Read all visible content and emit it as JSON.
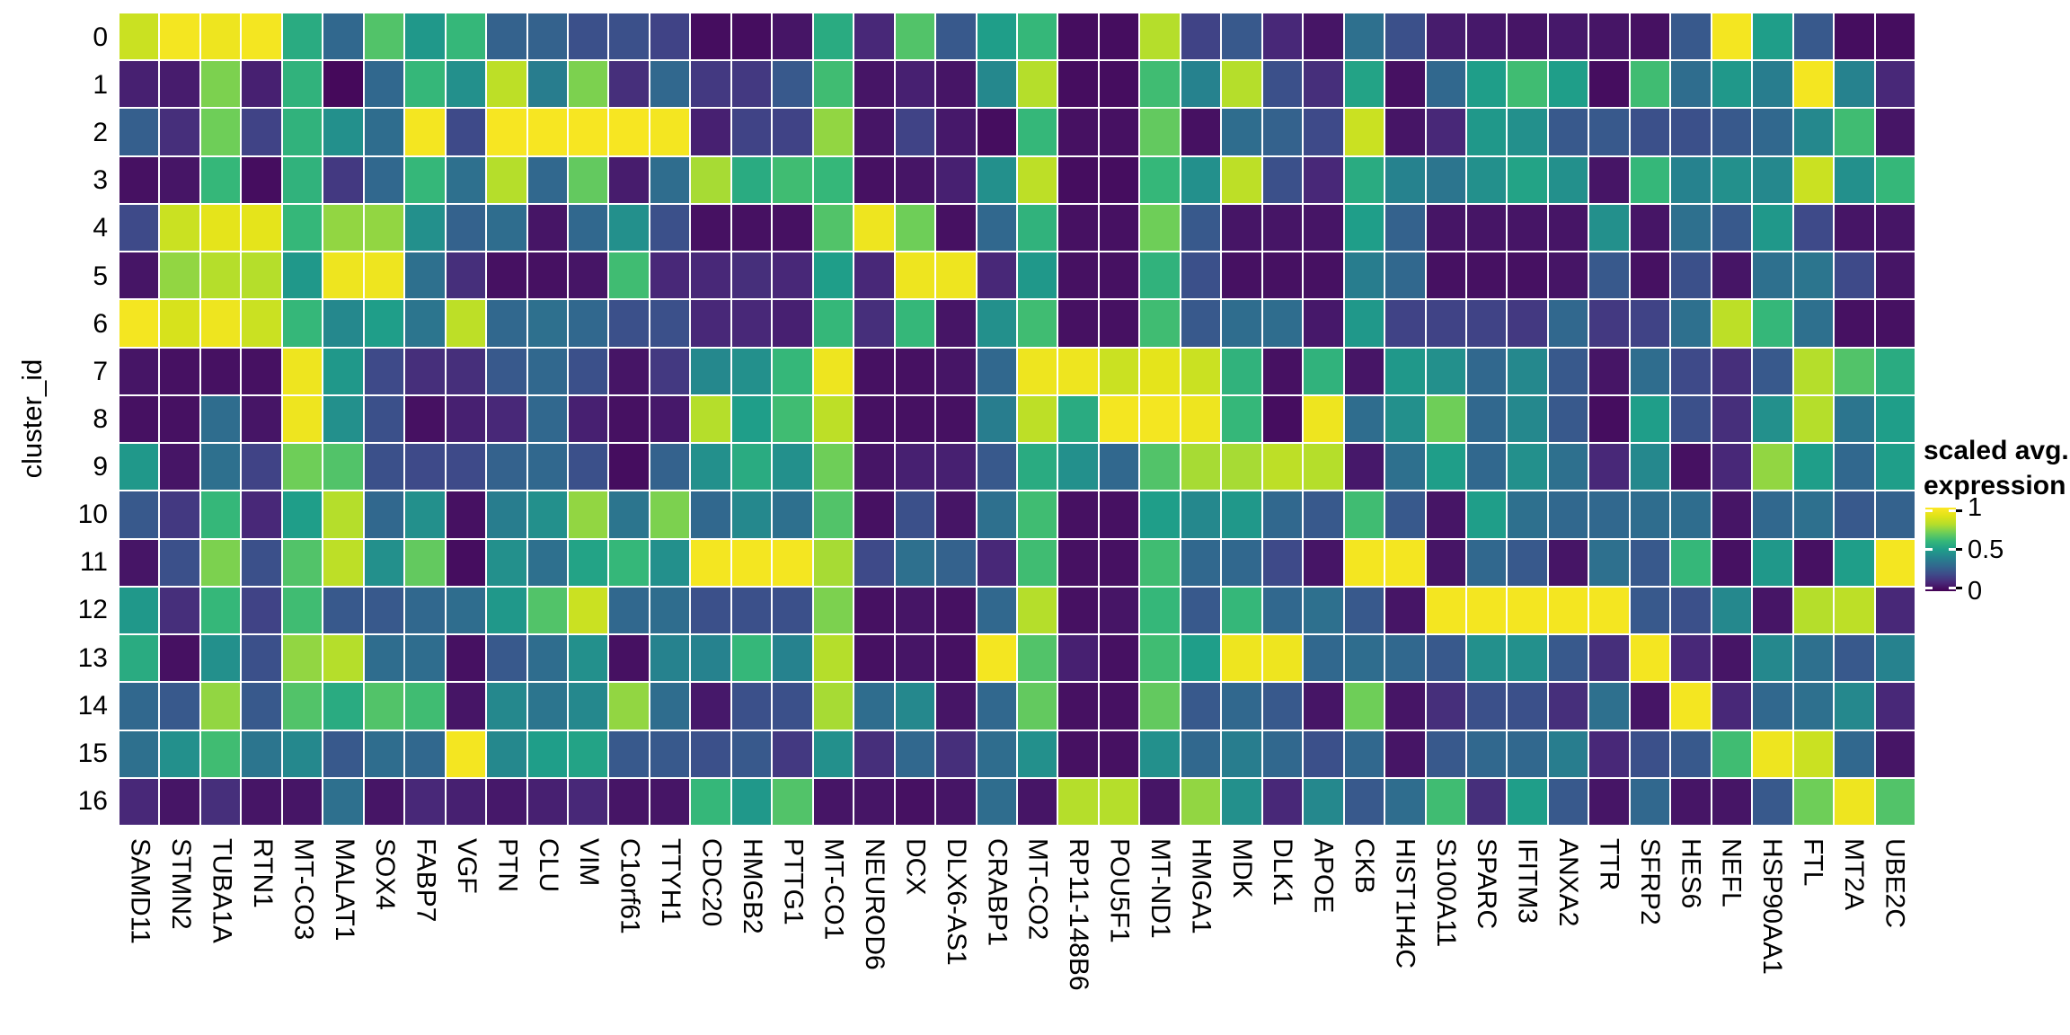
{
  "chart_data": {
    "type": "heatmap",
    "title": "",
    "xlabel": "",
    "ylabel": "cluster_id",
    "colormap": "viridis",
    "value_range": [
      0,
      1
    ],
    "grid": false,
    "legend_position": "right",
    "legend": {
      "title_line1": "scaled avg.",
      "title_line2": "expression",
      "ticks": [
        {
          "label": "1",
          "value": 1
        },
        {
          "label": "0.5",
          "value": 0.5
        },
        {
          "label": "0",
          "value": 0
        }
      ]
    },
    "x_categories": [
      "SAMD11",
      "STMN2",
      "TUBA1A",
      "RTN1",
      "MT-CO3",
      "MALAT1",
      "SOX4",
      "FABP7",
      "VGF",
      "PTN",
      "CLU",
      "VIM",
      "C1orf61",
      "TTYH1",
      "CDC20",
      "HMGB2",
      "PTTG1",
      "MT-CO1",
      "NEUROD6",
      "DCX",
      "DLX6-AS1",
      "CRABP1",
      "MT-CO2",
      "RP11-148B6",
      "POU5F1",
      "MT-ND1",
      "HMGA1",
      "MDK",
      "DLK1",
      "APOE",
      "CKB",
      "HIST1H4C",
      "S100A11",
      "SPARC",
      "IFITM3",
      "ANXA2",
      "TTR",
      "SFRP2",
      "HES6",
      "NEFL",
      "HSP90AA1",
      "FTL",
      "MT2A",
      "UBE2C"
    ],
    "y_categories": [
      "0",
      "1",
      "2",
      "3",
      "4",
      "5",
      "6",
      "7",
      "8",
      "9",
      "10",
      "11",
      "12",
      "13",
      "14",
      "15",
      "16"
    ],
    "values": [
      [
        0.85,
        0.97,
        0.95,
        0.97,
        0.55,
        0.3,
        0.65,
        0.48,
        0.6,
        0.28,
        0.28,
        0.22,
        0.22,
        0.18,
        0.03,
        0.03,
        0.05,
        0.55,
        0.1,
        0.65,
        0.25,
        0.5,
        0.6,
        0.03,
        0.03,
        0.8,
        0.18,
        0.25,
        0.1,
        0.05,
        0.33,
        0.22,
        0.07,
        0.06,
        0.05,
        0.06,
        0.05,
        0.04,
        0.25,
        0.97,
        0.5,
        0.25,
        0.03,
        0.03
      ],
      [
        0.08,
        0.07,
        0.72,
        0.08,
        0.58,
        0.02,
        0.3,
        0.6,
        0.45,
        0.82,
        0.38,
        0.72,
        0.12,
        0.3,
        0.15,
        0.15,
        0.25,
        0.62,
        0.05,
        0.08,
        0.05,
        0.42,
        0.8,
        0.03,
        0.03,
        0.62,
        0.4,
        0.8,
        0.22,
        0.12,
        0.52,
        0.04,
        0.3,
        0.5,
        0.62,
        0.5,
        0.03,
        0.62,
        0.32,
        0.48,
        0.38,
        0.97,
        0.4,
        0.1
      ],
      [
        0.27,
        0.12,
        0.7,
        0.18,
        0.58,
        0.45,
        0.32,
        0.97,
        0.2,
        0.98,
        0.98,
        0.98,
        0.98,
        0.97,
        0.08,
        0.18,
        0.18,
        0.75,
        0.05,
        0.18,
        0.06,
        0.03,
        0.6,
        0.04,
        0.04,
        0.68,
        0.04,
        0.32,
        0.28,
        0.2,
        0.85,
        0.05,
        0.1,
        0.48,
        0.45,
        0.25,
        0.25,
        0.22,
        0.22,
        0.25,
        0.3,
        0.42,
        0.62,
        0.05
      ],
      [
        0.04,
        0.05,
        0.6,
        0.03,
        0.58,
        0.15,
        0.3,
        0.6,
        0.33,
        0.8,
        0.3,
        0.68,
        0.07,
        0.32,
        0.78,
        0.55,
        0.62,
        0.6,
        0.04,
        0.05,
        0.08,
        0.45,
        0.82,
        0.03,
        0.03,
        0.6,
        0.45,
        0.82,
        0.22,
        0.1,
        0.55,
        0.4,
        0.35,
        0.45,
        0.52,
        0.45,
        0.05,
        0.6,
        0.4,
        0.45,
        0.42,
        0.85,
        0.45,
        0.6
      ],
      [
        0.2,
        0.85,
        0.92,
        0.92,
        0.6,
        0.75,
        0.75,
        0.45,
        0.28,
        0.32,
        0.05,
        0.3,
        0.45,
        0.22,
        0.04,
        0.04,
        0.04,
        0.65,
        0.95,
        0.7,
        0.04,
        0.3,
        0.58,
        0.04,
        0.04,
        0.7,
        0.25,
        0.05,
        0.05,
        0.05,
        0.5,
        0.28,
        0.05,
        0.05,
        0.05,
        0.05,
        0.45,
        0.05,
        0.33,
        0.25,
        0.48,
        0.2,
        0.05,
        0.05
      ],
      [
        0.05,
        0.75,
        0.8,
        0.8,
        0.48,
        0.95,
        0.95,
        0.33,
        0.12,
        0.04,
        0.04,
        0.05,
        0.62,
        0.1,
        0.1,
        0.12,
        0.1,
        0.5,
        0.1,
        0.95,
        0.95,
        0.1,
        0.48,
        0.04,
        0.04,
        0.58,
        0.22,
        0.04,
        0.04,
        0.04,
        0.38,
        0.3,
        0.04,
        0.04,
        0.04,
        0.05,
        0.25,
        0.04,
        0.22,
        0.05,
        0.33,
        0.35,
        0.2,
        0.05
      ],
      [
        0.97,
        0.88,
        0.95,
        0.85,
        0.6,
        0.42,
        0.5,
        0.35,
        0.82,
        0.3,
        0.33,
        0.3,
        0.22,
        0.22,
        0.1,
        0.1,
        0.08,
        0.6,
        0.12,
        0.6,
        0.05,
        0.45,
        0.62,
        0.04,
        0.04,
        0.62,
        0.25,
        0.32,
        0.32,
        0.06,
        0.48,
        0.18,
        0.18,
        0.18,
        0.15,
        0.3,
        0.15,
        0.18,
        0.33,
        0.82,
        0.6,
        0.33,
        0.04,
        0.04
      ],
      [
        0.05,
        0.04,
        0.04,
        0.04,
        0.95,
        0.48,
        0.2,
        0.12,
        0.12,
        0.25,
        0.3,
        0.22,
        0.05,
        0.15,
        0.42,
        0.45,
        0.6,
        0.95,
        0.04,
        0.04,
        0.05,
        0.3,
        0.95,
        0.95,
        0.85,
        0.92,
        0.85,
        0.58,
        0.04,
        0.58,
        0.05,
        0.48,
        0.45,
        0.3,
        0.42,
        0.25,
        0.05,
        0.32,
        0.2,
        0.12,
        0.25,
        0.8,
        0.65,
        0.55
      ],
      [
        0.04,
        0.04,
        0.32,
        0.05,
        0.95,
        0.45,
        0.22,
        0.04,
        0.08,
        0.1,
        0.3,
        0.08,
        0.04,
        0.06,
        0.8,
        0.5,
        0.62,
        0.82,
        0.04,
        0.04,
        0.04,
        0.38,
        0.82,
        0.55,
        0.97,
        0.97,
        0.95,
        0.6,
        0.03,
        0.95,
        0.32,
        0.45,
        0.7,
        0.3,
        0.42,
        0.25,
        0.03,
        0.5,
        0.22,
        0.12,
        0.45,
        0.8,
        0.35,
        0.5
      ],
      [
        0.48,
        0.05,
        0.33,
        0.18,
        0.7,
        0.65,
        0.22,
        0.2,
        0.2,
        0.28,
        0.3,
        0.22,
        0.03,
        0.28,
        0.45,
        0.55,
        0.45,
        0.7,
        0.05,
        0.08,
        0.08,
        0.25,
        0.55,
        0.45,
        0.3,
        0.65,
        0.78,
        0.78,
        0.82,
        0.8,
        0.06,
        0.33,
        0.5,
        0.3,
        0.45,
        0.33,
        0.1,
        0.42,
        0.04,
        0.1,
        0.75,
        0.5,
        0.3,
        0.5
      ],
      [
        0.25,
        0.15,
        0.6,
        0.1,
        0.5,
        0.8,
        0.3,
        0.45,
        0.04,
        0.38,
        0.45,
        0.75,
        0.35,
        0.72,
        0.3,
        0.42,
        0.33,
        0.65,
        0.04,
        0.22,
        0.05,
        0.33,
        0.62,
        0.04,
        0.04,
        0.5,
        0.42,
        0.48,
        0.3,
        0.25,
        0.62,
        0.25,
        0.05,
        0.5,
        0.33,
        0.3,
        0.3,
        0.32,
        0.32,
        0.05,
        0.3,
        0.33,
        0.25,
        0.28
      ],
      [
        0.05,
        0.22,
        0.72,
        0.22,
        0.65,
        0.82,
        0.45,
        0.68,
        0.03,
        0.45,
        0.33,
        0.52,
        0.6,
        0.45,
        0.97,
        0.97,
        0.97,
        0.78,
        0.2,
        0.33,
        0.28,
        0.1,
        0.62,
        0.04,
        0.04,
        0.62,
        0.3,
        0.3,
        0.2,
        0.05,
        0.97,
        0.97,
        0.05,
        0.3,
        0.25,
        0.05,
        0.33,
        0.25,
        0.6,
        0.04,
        0.48,
        0.04,
        0.5,
        0.97
      ],
      [
        0.48,
        0.12,
        0.6,
        0.18,
        0.62,
        0.25,
        0.25,
        0.3,
        0.32,
        0.48,
        0.65,
        0.85,
        0.3,
        0.32,
        0.22,
        0.22,
        0.22,
        0.72,
        0.04,
        0.05,
        0.04,
        0.3,
        0.8,
        0.04,
        0.05,
        0.6,
        0.25,
        0.6,
        0.3,
        0.33,
        0.25,
        0.05,
        0.97,
        0.97,
        0.97,
        0.97,
        0.97,
        0.25,
        0.22,
        0.42,
        0.05,
        0.8,
        0.82,
        0.1
      ],
      [
        0.55,
        0.04,
        0.45,
        0.22,
        0.75,
        0.8,
        0.32,
        0.32,
        0.04,
        0.25,
        0.32,
        0.45,
        0.04,
        0.4,
        0.4,
        0.6,
        0.4,
        0.8,
        0.04,
        0.05,
        0.04,
        0.97,
        0.65,
        0.08,
        0.04,
        0.62,
        0.5,
        0.95,
        0.95,
        0.3,
        0.32,
        0.3,
        0.25,
        0.45,
        0.45,
        0.25,
        0.12,
        0.97,
        0.1,
        0.05,
        0.42,
        0.33,
        0.25,
        0.4
      ],
      [
        0.3,
        0.25,
        0.75,
        0.25,
        0.65,
        0.55,
        0.65,
        0.62,
        0.05,
        0.42,
        0.35,
        0.42,
        0.75,
        0.32,
        0.06,
        0.22,
        0.22,
        0.78,
        0.32,
        0.42,
        0.05,
        0.3,
        0.68,
        0.04,
        0.04,
        0.68,
        0.25,
        0.3,
        0.25,
        0.05,
        0.7,
        0.05,
        0.12,
        0.22,
        0.22,
        0.12,
        0.33,
        0.05,
        0.97,
        0.1,
        0.3,
        0.33,
        0.42,
        0.1
      ],
      [
        0.33,
        0.45,
        0.62,
        0.35,
        0.42,
        0.25,
        0.32,
        0.3,
        0.97,
        0.42,
        0.5,
        0.52,
        0.25,
        0.25,
        0.22,
        0.25,
        0.15,
        0.45,
        0.12,
        0.3,
        0.12,
        0.32,
        0.45,
        0.04,
        0.04,
        0.45,
        0.3,
        0.38,
        0.3,
        0.22,
        0.3,
        0.05,
        0.25,
        0.3,
        0.3,
        0.38,
        0.1,
        0.22,
        0.25,
        0.62,
        0.95,
        0.85,
        0.3,
        0.05
      ],
      [
        0.1,
        0.05,
        0.12,
        0.05,
        0.05,
        0.33,
        0.05,
        0.1,
        0.08,
        0.06,
        0.08,
        0.1,
        0.05,
        0.05,
        0.6,
        0.48,
        0.65,
        0.05,
        0.05,
        0.04,
        0.05,
        0.32,
        0.05,
        0.8,
        0.8,
        0.05,
        0.75,
        0.45,
        0.1,
        0.42,
        0.25,
        0.32,
        0.62,
        0.12,
        0.5,
        0.25,
        0.05,
        0.3,
        0.05,
        0.05,
        0.25,
        0.7,
        0.95,
        0.65
      ]
    ]
  }
}
